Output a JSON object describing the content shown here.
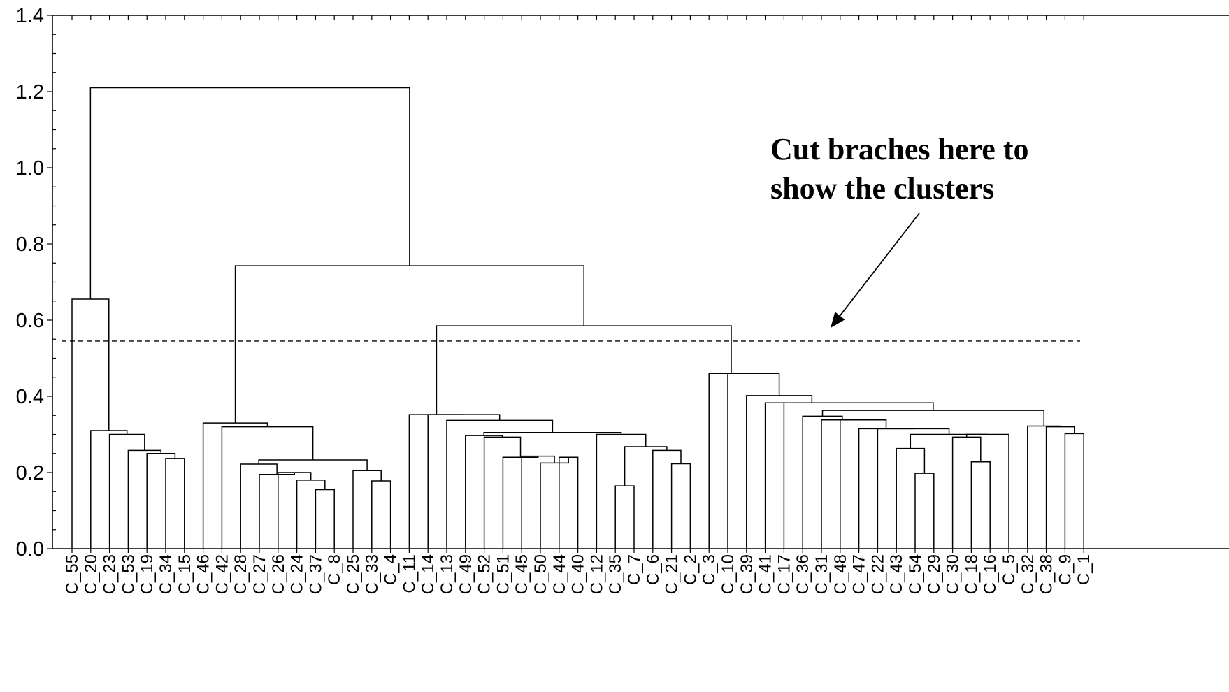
{
  "chart_data": {
    "type": "dendrogram",
    "title": "",
    "xlabel": "",
    "ylabel": "",
    "ylim": [
      0.0,
      1.4
    ],
    "yticks": [
      0.0,
      0.2,
      0.4,
      0.6,
      0.8,
      1.0,
      1.2,
      1.4
    ],
    "ytick_labels": [
      "0.0",
      "0.2",
      "0.4",
      "0.6",
      "0.8",
      "1.0",
      "1.2",
      "1.4"
    ],
    "leaves": [
      "C_55",
      "C_20",
      "C_23",
      "C_53",
      "C_19",
      "C_34",
      "C_15",
      "C_46",
      "C_42",
      "C_28",
      "C_27",
      "C_26",
      "C_24",
      "C_37",
      "C_8",
      "C_25",
      "C_33",
      "C_4",
      "C_11",
      "C_14",
      "C_13",
      "C_49",
      "C_52",
      "C_51",
      "C_45",
      "C_50",
      "C_44",
      "C_40",
      "C_12",
      "C_35",
      "C_7",
      "C_6",
      "C_21",
      "C_2",
      "C_3",
      "C_10",
      "C_39",
      "C_41",
      "C_17",
      "C_36",
      "C_31",
      "C_48",
      "C_47",
      "C_22",
      "C_43",
      "C_54",
      "C_29",
      "C_30",
      "C_18",
      "C_16",
      "C_5",
      "C_32",
      "C_38",
      "C_9",
      "C_1"
    ],
    "merges": [
      {
        "left": 6,
        "right": 5,
        "height": 0.237
      },
      {
        "left": 4,
        "right": 55,
        "height": 0.25
      },
      {
        "left": 3,
        "right": 56,
        "height": 0.258
      },
      {
        "left": 2,
        "right": 57,
        "height": 0.3
      },
      {
        "left": 1,
        "right": 58,
        "height": 0.31
      },
      {
        "left": 0,
        "right": 59,
        "height": 0.655
      },
      {
        "left": 13,
        "right": 14,
        "height": 0.155
      },
      {
        "left": 12,
        "right": 61,
        "height": 0.18
      },
      {
        "left": 11,
        "right": 62,
        "height": 0.2
      },
      {
        "left": 10,
        "right": 63,
        "height": 0.195
      },
      {
        "left": 9,
        "right": 64,
        "height": 0.222
      },
      {
        "left": 16,
        "right": 17,
        "height": 0.178
      },
      {
        "left": 15,
        "right": 66,
        "height": 0.205
      },
      {
        "left": 65,
        "right": 67,
        "height": 0.233
      },
      {
        "left": 8,
        "right": 68,
        "height": 0.32
      },
      {
        "left": 7,
        "right": 69,
        "height": 0.33
      },
      {
        "left": 26,
        "right": 27,
        "height": 0.24
      },
      {
        "left": 25,
        "right": 71,
        "height": 0.225
      },
      {
        "left": 24,
        "right": 72,
        "height": 0.243
      },
      {
        "left": 23,
        "right": 73,
        "height": 0.24
      },
      {
        "left": 22,
        "right": 74,
        "height": 0.293
      },
      {
        "left": 21,
        "right": 75,
        "height": 0.297
      },
      {
        "left": 29,
        "right": 30,
        "height": 0.165
      },
      {
        "left": 32,
        "right": 33,
        "height": 0.223
      },
      {
        "left": 31,
        "right": 78,
        "height": 0.258
      },
      {
        "left": 77,
        "right": 79,
        "height": 0.268
      },
      {
        "left": 28,
        "right": 80,
        "height": 0.3
      },
      {
        "left": 76,
        "right": 81,
        "height": 0.305
      },
      {
        "left": 20,
        "right": 82,
        "height": 0.337
      },
      {
        "left": 19,
        "right": 83,
        "height": 0.352
      },
      {
        "left": 18,
        "right": 84,
        "height": 0.352
      },
      {
        "left": 45,
        "right": 46,
        "height": 0.198
      },
      {
        "left": 44,
        "right": 86,
        "height": 0.263
      },
      {
        "left": 48,
        "right": 49,
        "height": 0.228
      },
      {
        "left": 47,
        "right": 88,
        "height": 0.293
      },
      {
        "left": 89,
        "right": 50,
        "height": 0.3
      },
      {
        "left": 87,
        "right": 90,
        "height": 0.3
      },
      {
        "left": 43,
        "right": 91,
        "height": 0.315
      },
      {
        "left": 42,
        "right": 92,
        "height": 0.315
      },
      {
        "left": 41,
        "right": 93,
        "height": 0.338
      },
      {
        "left": 40,
        "right": 94,
        "height": 0.338
      },
      {
        "left": 39,
        "right": 95,
        "height": 0.348
      },
      {
        "left": 53,
        "right": 54,
        "height": 0.302
      },
      {
        "left": 52,
        "right": 97,
        "height": 0.32
      },
      {
        "left": 51,
        "right": 98,
        "height": 0.322
      },
      {
        "left": 96,
        "right": 99,
        "height": 0.363
      },
      {
        "left": 38,
        "right": 100,
        "height": 0.383
      },
      {
        "left": 37,
        "right": 101,
        "height": 0.383
      },
      {
        "left": 36,
        "right": 102,
        "height": 0.402
      },
      {
        "left": 35,
        "right": 103,
        "height": 0.46
      },
      {
        "left": 34,
        "right": 104,
        "height": 0.46
      },
      {
        "left": 85,
        "right": 105,
        "height": 0.585
      },
      {
        "left": 70,
        "right": 106,
        "height": 0.743
      },
      {
        "left": 60,
        "right": 107,
        "height": 1.21
      }
    ],
    "cut_height": 0.545,
    "annotation": {
      "text_lines": [
        "Cut braches here to",
        "show the clusters"
      ],
      "arrow_target_y": 0.585
    },
    "grid": false
  }
}
